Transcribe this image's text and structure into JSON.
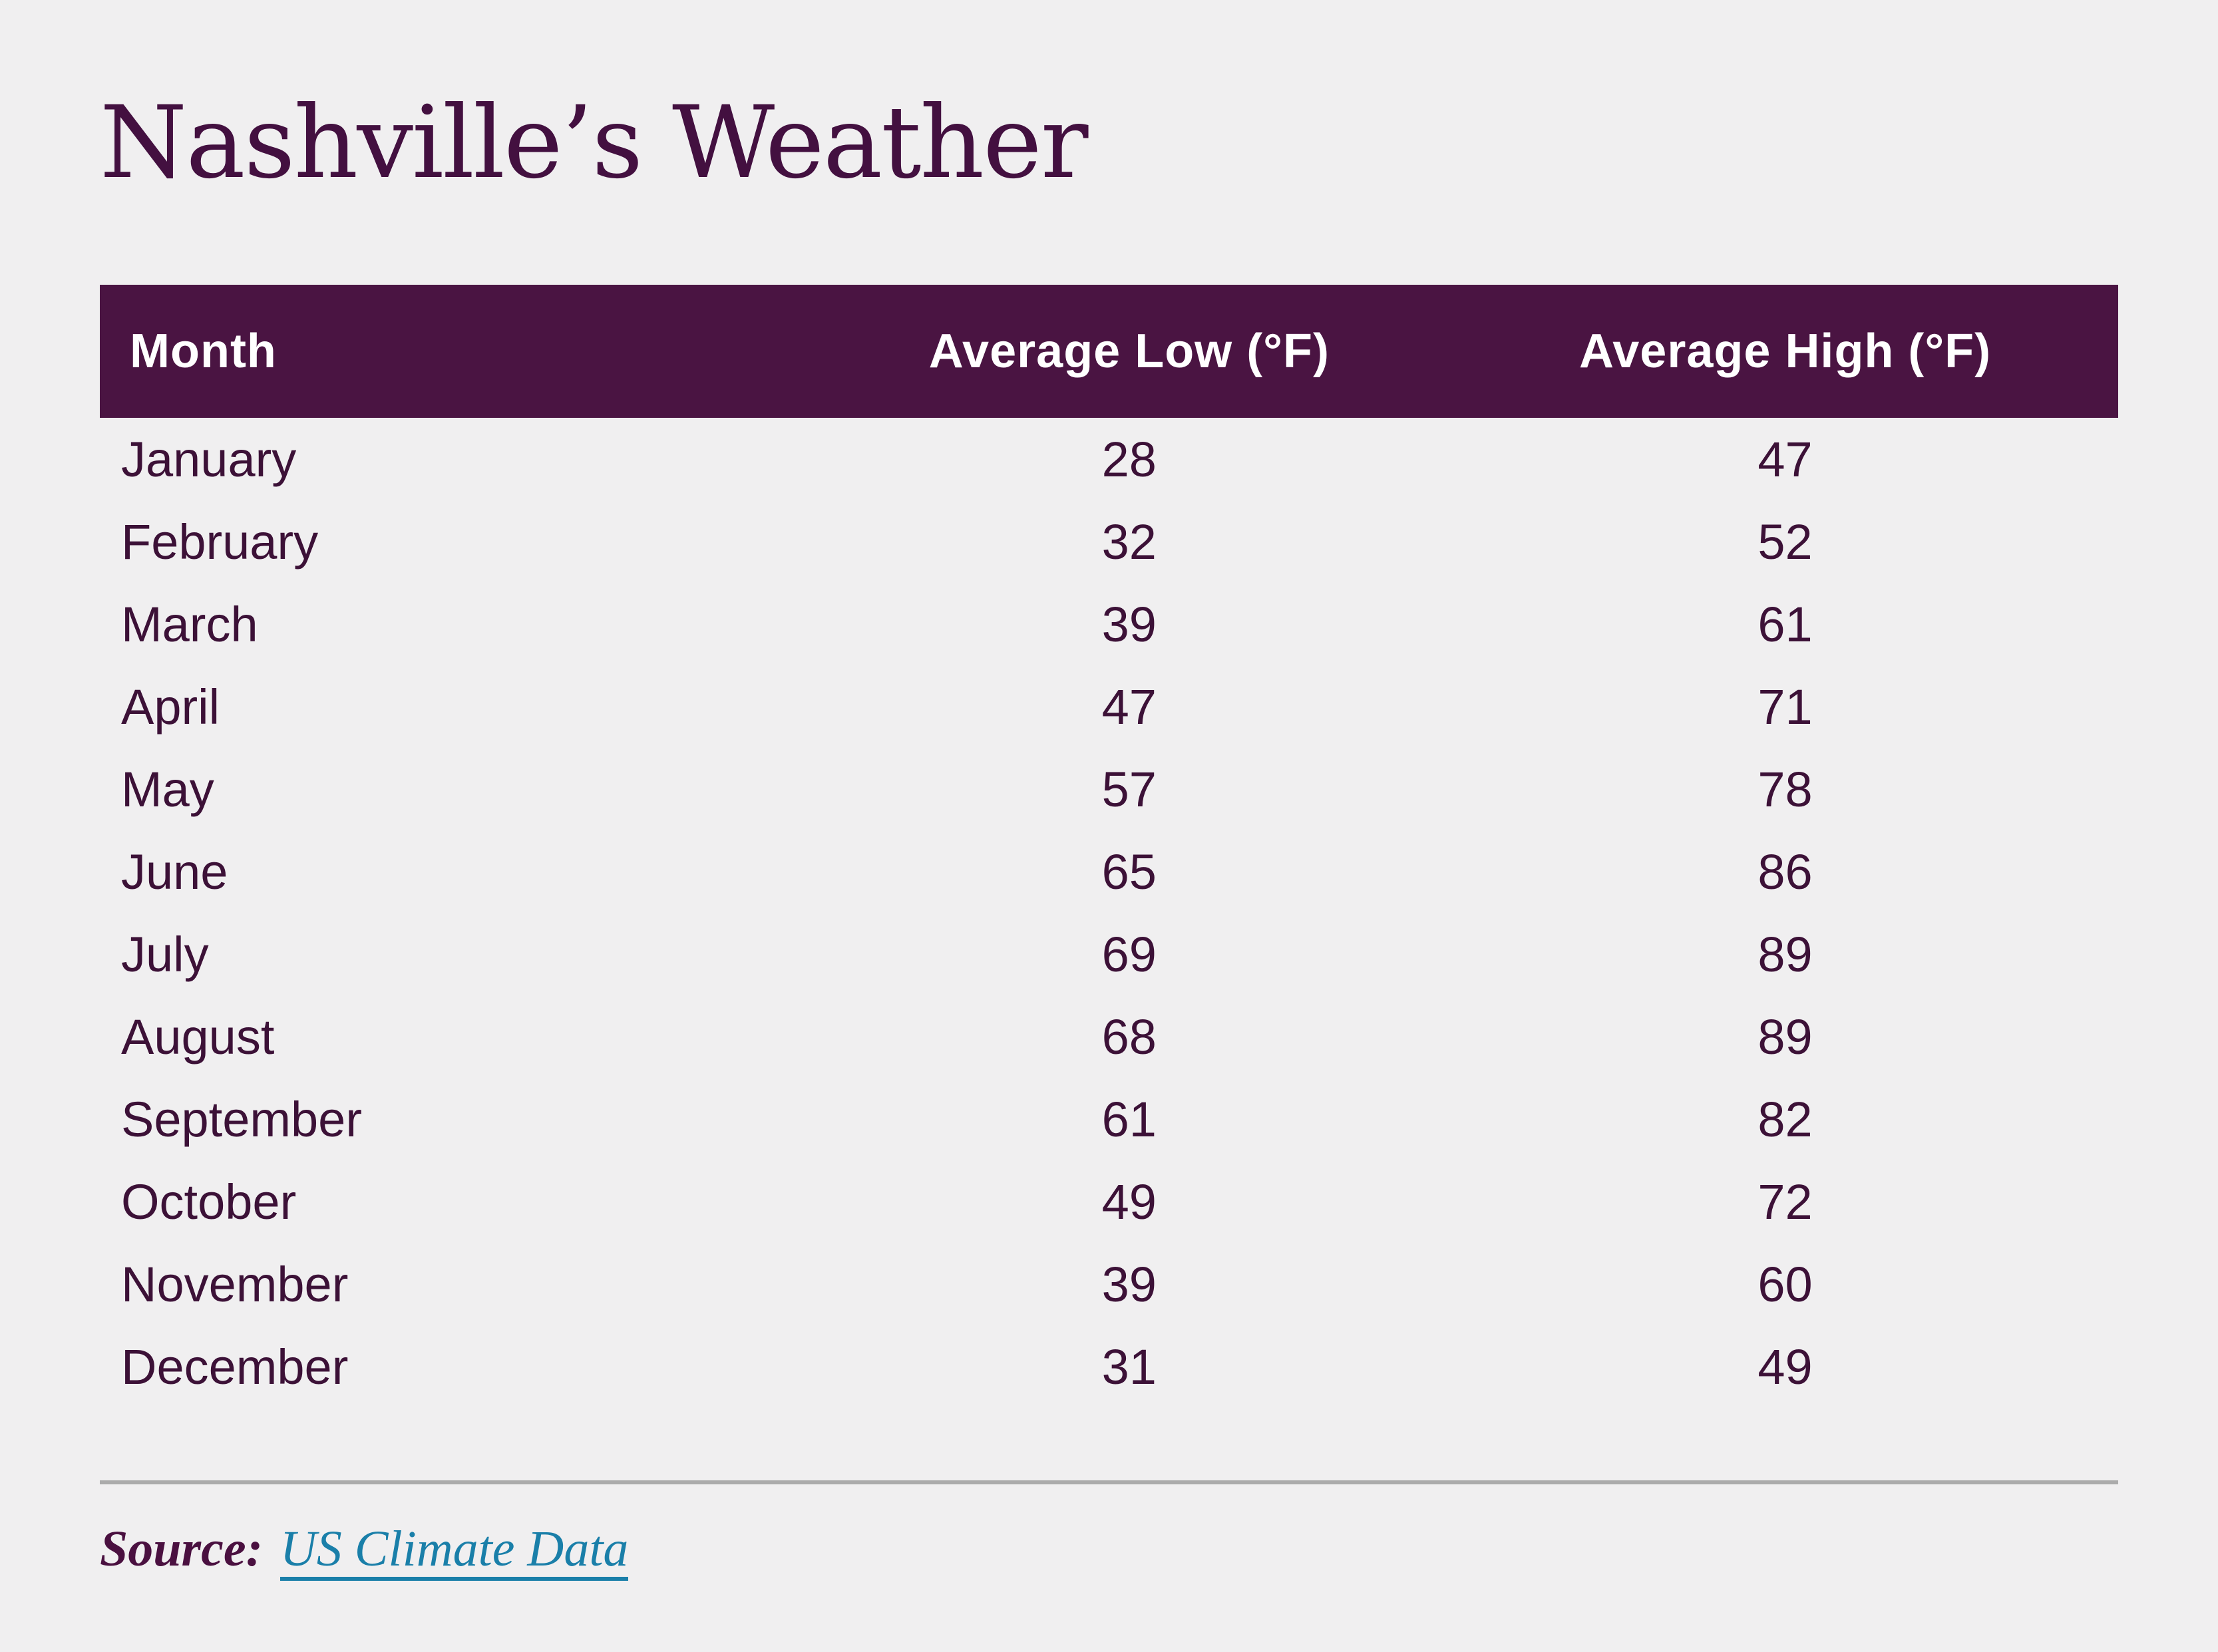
{
  "title": "Nashville’s Weather",
  "theme": {
    "background": "#f0eff0",
    "primary_purple": "#4a1442",
    "title_color": "#431040",
    "header_text_color": "#ffffff",
    "row_text_color": "#3c1137",
    "link_color": "#1a7fa9",
    "divider_color": "#ababab"
  },
  "table": {
    "columns": [
      {
        "label": "Month"
      },
      {
        "label": "Average Low (°F)"
      },
      {
        "label": "Average High (°F)"
      }
    ],
    "rows": [
      {
        "month": "January",
        "low": "28",
        "high": "47"
      },
      {
        "month": "February",
        "low": "32",
        "high": "52"
      },
      {
        "month": "March",
        "low": "39",
        "high": "61"
      },
      {
        "month": "April",
        "low": "47",
        "high": "71"
      },
      {
        "month": "May",
        "low": "57",
        "high": "78"
      },
      {
        "month": "June",
        "low": "65",
        "high": "86"
      },
      {
        "month": "July",
        "low": "69",
        "high": "89"
      },
      {
        "month": "August",
        "low": "68",
        "high": "89"
      },
      {
        "month": "September",
        "low": "61",
        "high": "82"
      },
      {
        "month": "October",
        "low": "49",
        "high": "72"
      },
      {
        "month": "November",
        "low": "39",
        "high": "60"
      },
      {
        "month": "December",
        "low": "31",
        "high": "49"
      }
    ]
  },
  "footer": {
    "source_label": "Source:",
    "source_link": "US Climate Data"
  },
  "chart_data": {
    "type": "table",
    "title": "Nashville’s Weather",
    "categories": [
      "January",
      "February",
      "March",
      "April",
      "May",
      "June",
      "July",
      "August",
      "September",
      "October",
      "November",
      "December"
    ],
    "series": [
      {
        "name": "Average Low (°F)",
        "values": [
          28,
          32,
          39,
          47,
          57,
          65,
          69,
          68,
          61,
          49,
          39,
          31
        ]
      },
      {
        "name": "Average High (°F)",
        "values": [
          47,
          52,
          61,
          71,
          78,
          86,
          89,
          89,
          82,
          72,
          60,
          49
        ]
      }
    ],
    "source": "US Climate Data"
  }
}
